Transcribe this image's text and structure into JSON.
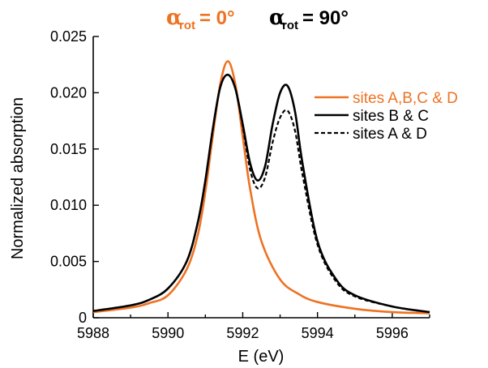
{
  "chart_data": {
    "type": "line",
    "title": {
      "left": {
        "symbol": "α",
        "subscript": "rot",
        "value": "= 0°",
        "color": "#ee7222"
      },
      "right": {
        "symbol": "α",
        "subscript": "rot",
        "value": "= 90°",
        "color": "#000000"
      }
    },
    "xlabel": "E (eV)",
    "ylabel": "Normalized absorption",
    "xlim": [
      5988,
      5997
    ],
    "ylim": [
      0,
      0.025
    ],
    "xticks": [
      5988,
      5990,
      5992,
      5994,
      5996
    ],
    "xtick_labels": [
      "5988",
      "5990",
      "5992",
      "5994",
      "5996"
    ],
    "yticks": [
      0,
      0.005,
      0.01,
      0.015,
      0.02,
      0.025
    ],
    "ytick_labels": [
      "0",
      "0.005",
      "0.010",
      "0.015",
      "0.020",
      "0.025"
    ],
    "legend_position": "top-right",
    "series": [
      {
        "name": "sites A,B,C & D",
        "color": "#ee7222",
        "style": "solid",
        "x": [
          5988,
          5989,
          5989.5,
          5990,
          5990.5,
          5990.8,
          5991,
          5991.2,
          5991.4,
          5991.6,
          5991.8,
          5992,
          5992.2,
          5992.5,
          5993,
          5993.5,
          5994,
          5995,
          5996,
          5997
        ],
        "y": [
          0.0005,
          0.0009,
          0.0013,
          0.002,
          0.0043,
          0.0074,
          0.0112,
          0.0162,
          0.0208,
          0.0228,
          0.0208,
          0.0161,
          0.0114,
          0.0068,
          0.0034,
          0.0021,
          0.0014,
          0.0008,
          0.0005,
          0.0004
        ]
      },
      {
        "name": "sites B & C",
        "color": "#000000",
        "style": "solid",
        "x": [
          5988,
          5989,
          5989.5,
          5990,
          5990.5,
          5990.8,
          5991,
          5991.2,
          5991.4,
          5991.6,
          5991.8,
          5992,
          5992.2,
          5992.4,
          5992.6,
          5992.8,
          5993,
          5993.2,
          5993.4,
          5993.6,
          5994,
          5994.5,
          5995,
          5996,
          5997
        ],
        "y": [
          0.0006,
          0.0011,
          0.0016,
          0.0026,
          0.005,
          0.0085,
          0.0122,
          0.0168,
          0.0205,
          0.0216,
          0.0204,
          0.0172,
          0.0137,
          0.0122,
          0.0135,
          0.0172,
          0.02,
          0.0206,
          0.0183,
          0.0137,
          0.0068,
          0.0034,
          0.002,
          0.001,
          0.0005
        ]
      },
      {
        "name": "sites A & D",
        "color": "#000000",
        "style": "dashed",
        "x": [
          5988,
          5989,
          5989.5,
          5990,
          5990.5,
          5990.8,
          5991,
          5991.2,
          5991.4,
          5991.6,
          5991.8,
          5992,
          5992.2,
          5992.4,
          5992.6,
          5992.8,
          5993,
          5993.2,
          5993.4,
          5993.6,
          5994,
          5994.5,
          5995,
          5996,
          5997
        ],
        "y": [
          0.0006,
          0.0011,
          0.0016,
          0.0026,
          0.005,
          0.0085,
          0.0122,
          0.0168,
          0.0205,
          0.0216,
          0.0204,
          0.017,
          0.0131,
          0.0115,
          0.0125,
          0.0156,
          0.0178,
          0.0184,
          0.0166,
          0.0127,
          0.0065,
          0.0032,
          0.0019,
          0.001,
          0.0005
        ]
      }
    ]
  }
}
